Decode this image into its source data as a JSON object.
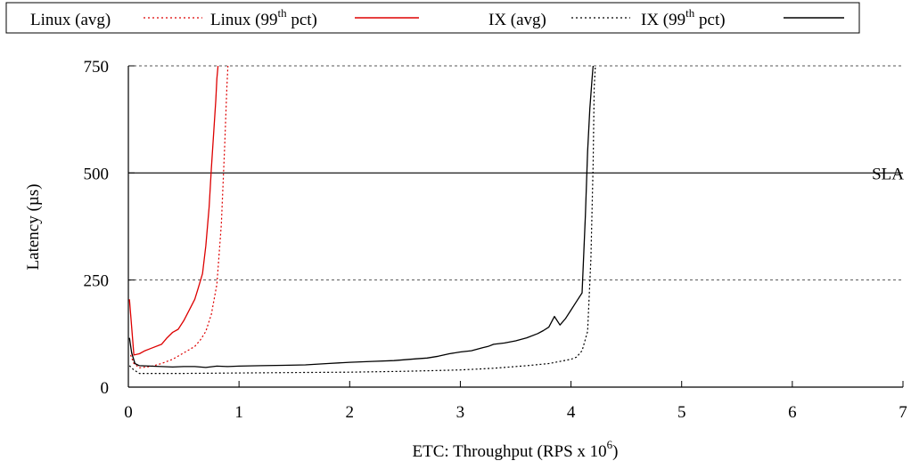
{
  "chart_data": {
    "type": "line",
    "xlabel": "ETC: Throughput (RPS x 10",
    "xlabel_sup": "6",
    "xlabel_suffix": ")",
    "ylabel": "Latency (µs)",
    "xlim": [
      0,
      7
    ],
    "ylim": [
      0,
      750
    ],
    "xticks": [
      "0",
      "1",
      "2",
      "3",
      "4",
      "5",
      "6",
      "7"
    ],
    "yticks": [
      "0",
      "250",
      "500",
      "750"
    ],
    "grid": "dashed horizontal lines at 250 and 750",
    "legend_position": "top, outside plot",
    "sla": {
      "value": 500,
      "label": "SLA"
    },
    "series": [
      {
        "name": "Linux (avg)",
        "legend_main": "Linux (avg)",
        "color": "#dd0000",
        "dash": "dotted",
        "x": [
          0.02,
          0.05,
          0.1,
          0.2,
          0.3,
          0.4,
          0.5,
          0.6,
          0.65,
          0.7,
          0.75,
          0.8,
          0.84,
          0.87,
          0.89,
          0.9
        ],
        "y": [
          75,
          55,
          45,
          48,
          55,
          65,
          80,
          95,
          110,
          130,
          170,
          240,
          380,
          560,
          700,
          750
        ]
      },
      {
        "name": "Linux (99th pct)",
        "legend_main": "Linux (99",
        "legend_sup": "th",
        "legend_suffix": " pct)",
        "color": "#dd0000",
        "dash": "solid",
        "x": [
          0.01,
          0.03,
          0.05,
          0.1,
          0.15,
          0.2,
          0.3,
          0.35,
          0.4,
          0.45,
          0.5,
          0.55,
          0.6,
          0.63,
          0.67,
          0.7,
          0.73,
          0.75,
          0.77,
          0.79,
          0.8,
          0.81
        ],
        "y": [
          205,
          140,
          75,
          78,
          85,
          90,
          100,
          115,
          128,
          135,
          155,
          180,
          205,
          230,
          265,
          330,
          420,
          510,
          590,
          670,
          720,
          750
        ]
      },
      {
        "name": "IX (avg)",
        "legend_main": "IX (avg)",
        "color": "#000000",
        "dash": "dotted",
        "x": [
          0.01,
          0.05,
          0.1,
          0.5,
          1.0,
          1.5,
          2.0,
          2.5,
          3.0,
          3.3,
          3.6,
          3.8,
          3.9,
          4.0,
          4.05,
          4.1,
          4.15,
          4.18,
          4.2,
          4.21,
          4.22
        ],
        "y": [
          50,
          40,
          32,
          32,
          33,
          34,
          35,
          37,
          40,
          44,
          50,
          55,
          60,
          65,
          70,
          85,
          130,
          300,
          520,
          700,
          750
        ]
      },
      {
        "name": "IX (99th pct)",
        "legend_main": "IX (99",
        "legend_sup": "th",
        "legend_suffix": " pct)",
        "color": "#000000",
        "dash": "solid",
        "x": [
          0.01,
          0.03,
          0.06,
          0.1,
          0.2,
          0.3,
          0.4,
          0.5,
          0.6,
          0.7,
          0.8,
          0.9,
          1.0,
          1.2,
          1.4,
          1.6,
          1.8,
          2.0,
          2.2,
          2.4,
          2.6,
          2.7,
          2.8,
          2.9,
          3.0,
          3.1,
          3.2,
          3.25,
          3.3,
          3.4,
          3.5,
          3.6,
          3.7,
          3.75,
          3.8,
          3.85,
          3.9,
          3.95,
          4.0,
          4.05,
          4.1,
          4.13,
          4.15,
          4.17,
          4.19,
          4.2
        ],
        "y": [
          115,
          80,
          55,
          50,
          49,
          48,
          47,
          48,
          48,
          46,
          49,
          48,
          49,
          50,
          51,
          52,
          55,
          58,
          60,
          62,
          66,
          68,
          72,
          78,
          82,
          85,
          92,
          95,
          100,
          103,
          108,
          115,
          125,
          132,
          140,
          165,
          145,
          160,
          180,
          200,
          220,
          400,
          550,
          650,
          720,
          750
        ]
      }
    ]
  }
}
